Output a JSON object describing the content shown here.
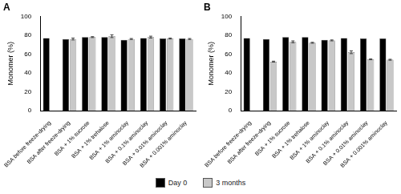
{
  "chart_data": [
    {
      "type": "bar",
      "title": "A",
      "y_label": "Monomer (%)",
      "categories": [
        "BSA before freeze-drying",
        "BSA after freeze-drying",
        "BSA + 1% sucrose",
        "BSA + 1% trehalose",
        "BSA + 1% aminoclay",
        "BSA + 0.1% aminoclay",
        "BSA + 0.01% aminoclay",
        "BSA + 0.001% aminoclay"
      ],
      "series": [
        {
          "name": "Day 0",
          "color": "#000000",
          "values": [
            77,
            76,
            78,
            78,
            75,
            77,
            76.5,
            76.5
          ]
        },
        {
          "name": "3 months",
          "color": "#c8c8c8",
          "values": [
            null,
            76,
            78,
            79,
            76,
            78,
            76.5,
            76
          ],
          "errors": [
            null,
            1,
            0.5,
            1.5,
            0.5,
            1,
            0.5,
            0.5
          ]
        }
      ],
      "ylim": [
        0,
        100
      ],
      "yticks": [
        0,
        20,
        40,
        60,
        80,
        100
      ],
      "grid": false,
      "legend": "bottom"
    },
    {
      "type": "bar",
      "title": "B",
      "y_label": "Monomer (%)",
      "categories": [
        "BSA before freeze-drying",
        "BSA after freeze-drying",
        "BSA + 1% sucrose",
        "BSA + 1% trehalose",
        "BSA + 1% aminoclay",
        "BSA + 0.1% aminoclay",
        "BSA + 0.01% aminoclay",
        "BSA + 0.001% aminoclay"
      ],
      "series": [
        {
          "name": "Day 0",
          "color": "#000000",
          "values": [
            77,
            76,
            78,
            78,
            75,
            77,
            76.5,
            76.5
          ]
        },
        {
          "name": "3 months",
          "color": "#c8c8c8",
          "values": [
            null,
            52,
            73,
            72,
            74.5,
            62,
            54.5,
            54
          ],
          "errors": [
            null,
            0.5,
            1,
            0.5,
            0.5,
            1.5,
            0.5,
            0.5
          ]
        }
      ],
      "ylim": [
        0,
        100
      ],
      "yticks": [
        0,
        20,
        40,
        60,
        80,
        100
      ],
      "grid": false
    }
  ]
}
